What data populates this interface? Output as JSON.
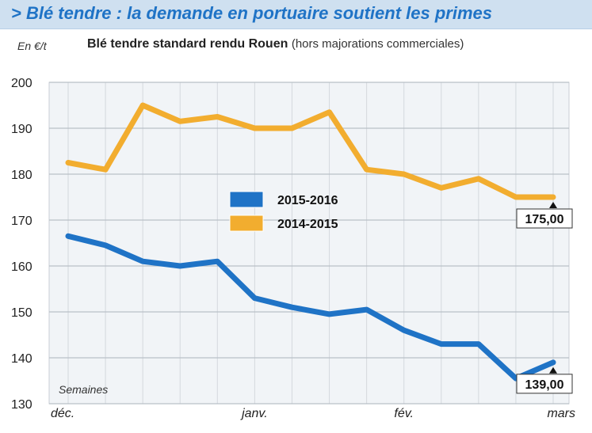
{
  "header": {
    "title": "> Blé tendre : la demande en portuaire soutient les primes",
    "unit": "En €/t",
    "subtitle_main": "Blé tendre standard rendu Rouen",
    "subtitle_note": "(hors majorations commerciales)"
  },
  "chart_data": {
    "type": "line",
    "title": "Blé tendre standard rendu Rouen",
    "ylabel": "En €/t",
    "xlabel": "Semaines",
    "ylim": [
      130,
      200
    ],
    "yticks": [
      130,
      140,
      150,
      160,
      170,
      180,
      190,
      200
    ],
    "x": [
      0,
      1,
      2,
      3,
      4,
      5,
      6,
      7,
      8,
      9,
      10,
      11,
      12,
      13
    ],
    "xtick_labels": [
      {
        "label": "déc.",
        "x": 0
      },
      {
        "label": "janv.",
        "x": 5
      },
      {
        "label": "fév.",
        "x": 9
      },
      {
        "label": "mars",
        "x": 13
      }
    ],
    "grid": true,
    "legend_position": "center-left",
    "series": [
      {
        "name": "2015-2016",
        "color": "#1f73c6",
        "values": [
          166.5,
          164.5,
          161,
          160,
          161,
          153,
          151,
          149.5,
          150.5,
          146,
          143,
          143,
          135.5,
          139
        ],
        "end_label": "139,00"
      },
      {
        "name": "2014-2015",
        "color": "#f2ad2f",
        "values": [
          182.5,
          181,
          195,
          191.5,
          192.5,
          190,
          190,
          193.5,
          181,
          180,
          177,
          179,
          175,
          175
        ],
        "end_label": "175,00"
      }
    ]
  }
}
